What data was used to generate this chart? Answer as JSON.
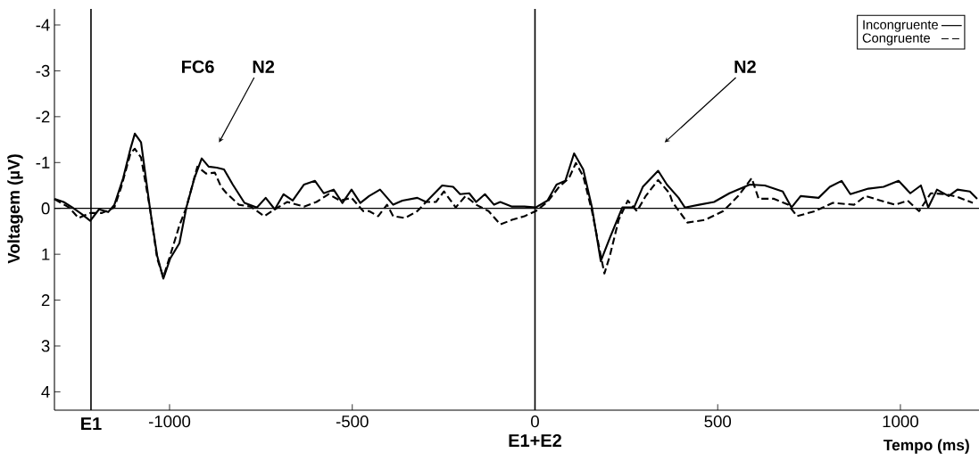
{
  "chart_data": {
    "type": "line",
    "xlabel": "Tempo (ms)",
    "ylabel": "Voltagem (µV)",
    "xlim": [
      -1315,
      1215
    ],
    "ylim": [
      4.4,
      -4.35
    ],
    "xticks": [
      -1000,
      -500,
      0,
      500,
      1000
    ],
    "yticks": [
      -4,
      -3,
      -2,
      -1,
      0,
      1,
      2,
      3,
      4
    ],
    "legend": "top right",
    "grid": false,
    "marker": "none",
    "ref_lines": [
      {
        "axis": "x",
        "value": -1215,
        "label": "E1"
      },
      {
        "axis": "x",
        "value": 0,
        "label": "E1+E2"
      },
      {
        "axis": "y",
        "value": 0,
        "label": null
      }
    ],
    "annotations": [
      "FC6",
      "N2",
      "N2"
    ],
    "series": [
      {
        "name": "Incongruente",
        "color": "#000000",
        "line_style": "solid",
        "x": [
          -1315,
          -1290,
          -1266,
          -1241,
          -1217,
          -1193,
          -1168,
          -1151,
          -1127,
          -1107,
          -1095,
          -1078,
          -1054,
          -1034,
          -1017,
          -998,
          -973,
          -954,
          -932,
          -912,
          -893,
          -871,
          -851,
          -827,
          -795,
          -761,
          -737,
          -712,
          -688,
          -663,
          -632,
          -602,
          -578,
          -551,
          -527,
          -502,
          -478,
          -454,
          -424,
          -388,
          -363,
          -322,
          -298,
          -254,
          -224,
          -205,
          -180,
          -161,
          -137,
          -112,
          -95,
          -63,
          -29,
          2,
          34,
          59,
          83,
          107,
          132,
          156,
          180,
          205,
          239,
          271,
          295,
          337,
          361,
          393,
          410,
          449,
          490,
          532,
          588,
          629,
          678,
          702,
          727,
          776,
          807,
          839,
          863,
          912,
          954,
          995,
          1027,
          1056,
          1076,
          1100,
          1132,
          1156,
          1190,
          1210
        ],
        "values": [
          -0.21,
          -0.14,
          -0.02,
          0.12,
          0.27,
          0.02,
          0.08,
          -0.08,
          -0.66,
          -1.3,
          -1.63,
          -1.44,
          -0.02,
          1.03,
          1.53,
          1.09,
          0.76,
          -0.02,
          -0.66,
          -1.09,
          -0.91,
          -0.89,
          -0.85,
          -0.52,
          -0.12,
          -0.02,
          -0.23,
          0.02,
          -0.31,
          -0.17,
          -0.52,
          -0.6,
          -0.33,
          -0.41,
          -0.12,
          -0.41,
          -0.12,
          -0.27,
          -0.41,
          -0.08,
          -0.17,
          -0.23,
          -0.14,
          -0.5,
          -0.47,
          -0.31,
          -0.33,
          -0.14,
          -0.31,
          -0.08,
          -0.14,
          -0.04,
          -0.04,
          -0.02,
          -0.17,
          -0.52,
          -0.6,
          -1.2,
          -0.85,
          -0.02,
          1.15,
          0.64,
          -0.02,
          -0.02,
          -0.47,
          -0.82,
          -0.52,
          -0.23,
          -0.02,
          -0.08,
          -0.14,
          -0.33,
          -0.52,
          -0.5,
          -0.37,
          -0.02,
          -0.27,
          -0.23,
          -0.47,
          -0.6,
          -0.31,
          -0.43,
          -0.47,
          -0.6,
          -0.33,
          -0.5,
          -0.02,
          -0.41,
          -0.27,
          -0.41,
          -0.37,
          -0.21
        ]
      },
      {
        "name": "Congruente",
        "color": "#000000",
        "line_style": "dashed",
        "x": [
          -1315,
          -1275,
          -1249,
          -1217,
          -1185,
          -1151,
          -1132,
          -1107,
          -1095,
          -1078,
          -1054,
          -1034,
          -1017,
          -993,
          -973,
          -954,
          -924,
          -900,
          -876,
          -859,
          -844,
          -810,
          -778,
          -741,
          -712,
          -678,
          -632,
          -598,
          -565,
          -533,
          -502,
          -470,
          -454,
          -429,
          -405,
          -388,
          -356,
          -322,
          -298,
          -271,
          -249,
          -217,
          -190,
          -161,
          -127,
          -95,
          -63,
          -29,
          2,
          34,
          66,
          93,
          112,
          132,
          156,
          180,
          190,
          205,
          229,
          254,
          279,
          303,
          337,
          368,
          376,
          417,
          466,
          515,
          556,
          593,
          612,
          654,
          693,
          717,
          766,
          815,
          873,
          905,
          946,
          985,
          1020,
          1051,
          1083,
          1124,
          1156,
          1198
        ],
        "values": [
          -0.2,
          -0.02,
          0.21,
          0.1,
          0.1,
          -0.02,
          -0.47,
          -1.2,
          -1.3,
          -1.11,
          -0.02,
          1.09,
          1.5,
          0.89,
          0.37,
          -0.02,
          -0.91,
          -0.76,
          -0.78,
          -0.47,
          -0.33,
          -0.08,
          -0.04,
          0.17,
          0.02,
          -0.14,
          -0.04,
          -0.14,
          -0.31,
          -0.17,
          -0.23,
          0.06,
          0.06,
          0.17,
          -0.08,
          0.17,
          0.21,
          0.06,
          -0.14,
          -0.14,
          -0.37,
          -0.02,
          -0.27,
          -0.08,
          0.06,
          0.35,
          0.25,
          0.17,
          0.06,
          -0.14,
          -0.47,
          -0.66,
          -0.99,
          -0.7,
          0.06,
          1.03,
          1.42,
          1.03,
          0.25,
          -0.17,
          0.06,
          -0.27,
          -0.62,
          -0.33,
          -0.14,
          0.31,
          0.25,
          0.06,
          -0.27,
          -0.66,
          -0.21,
          -0.21,
          -0.08,
          0.17,
          0.06,
          -0.12,
          -0.08,
          -0.27,
          -0.17,
          -0.08,
          -0.17,
          0.06,
          -0.33,
          -0.31,
          -0.25,
          -0.12
        ]
      }
    ]
  }
}
